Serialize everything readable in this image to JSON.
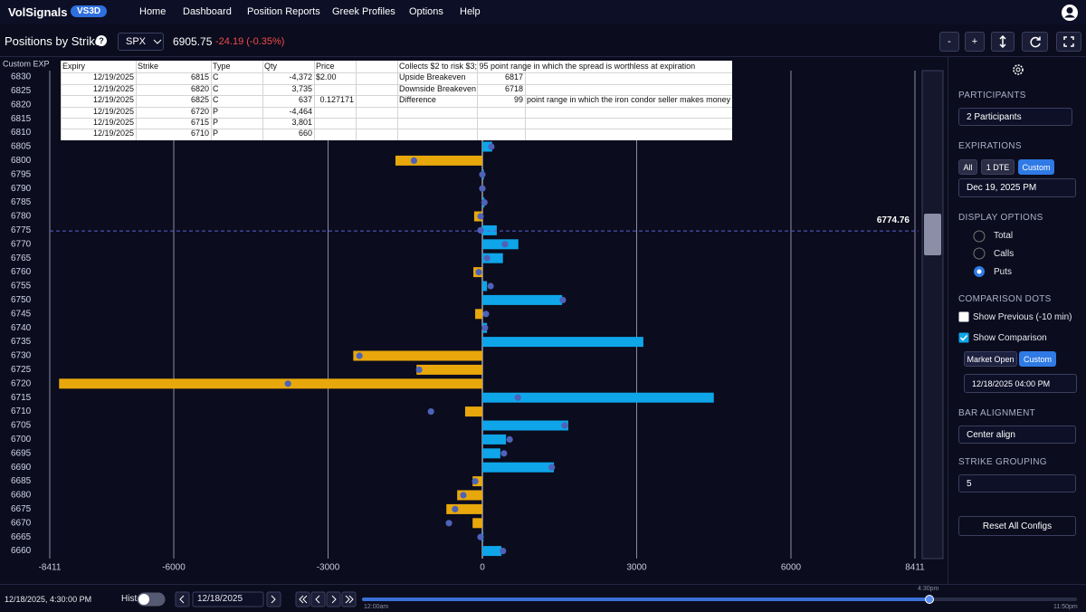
{
  "nav": {
    "brand": "VolSignals",
    "badge": "VS3D",
    "items": [
      "Home",
      "Dashboard",
      "Position Reports",
      "Greek Profiles",
      "Options",
      "Help"
    ]
  },
  "toolbar": {
    "title": "Positions by Strike",
    "help": "?",
    "symbol": "SPX",
    "price": "6905.75",
    "change": "-24.19 (-0.35%)",
    "buttons": [
      "-",
      "+"
    ]
  },
  "chart_data": {
    "type": "bar",
    "orientation": "horizontal",
    "y_label": "Custom EXP",
    "categories": [
      6830,
      6825,
      6820,
      6815,
      6810,
      6805,
      6800,
      6795,
      6790,
      6785,
      6780,
      6775,
      6770,
      6765,
      6760,
      6755,
      6750,
      6745,
      6740,
      6735,
      6730,
      6725,
      6720,
      6715,
      6710,
      6705,
      6700,
      6695,
      6690,
      6685,
      6680,
      6675,
      6670,
      6665,
      6660
    ],
    "values": [
      null,
      null,
      null,
      null,
      null,
      190,
      -1690,
      30,
      0,
      40,
      -160,
      280,
      700,
      400,
      -175,
      90,
      1550,
      -140,
      90,
      3130,
      -2510,
      -1280,
      -8230,
      4500,
      -335,
      1670,
      460,
      350,
      1390,
      -190,
      -490,
      -700,
      -190,
      20,
      370
    ],
    "comparison": [
      null,
      null,
      null,
      null,
      null,
      175,
      -1330,
      0,
      0,
      40,
      -35,
      -35,
      440,
      90,
      -70,
      160,
      1565,
      70,
      50,
      null,
      -2390,
      -1230,
      -3780,
      690,
      -1000,
      1600,
      530,
      420,
      1350,
      -140,
      -370,
      -530,
      -650,
      -35,
      400
    ],
    "xlim": [
      -8411,
      8411
    ],
    "xticks": [
      -8411,
      -6000,
      -3000,
      0,
      3000,
      6000,
      8411
    ],
    "grid": true,
    "current_price": 6774.76,
    "positive_color": "#0ea5e9",
    "negative_color": "#e8a80c",
    "dot_color": "#4d62b8"
  },
  "spreadsheet": {
    "header": [
      "Expiry",
      "Strike",
      "Type",
      "Qty",
      "Price"
    ],
    "rows": [
      [
        "12/19/2025",
        "6815",
        "C",
        "-4,372",
        "$2.00"
      ],
      [
        "12/19/2025",
        "6820",
        "C",
        "3,735"
      ],
      [
        "12/19/2025",
        "6825",
        "C",
        "637",
        "0.127171"
      ],
      [
        "12/19/2025",
        "6720",
        "P",
        "-4,464"
      ],
      [
        "12/19/2025",
        "6715",
        "P",
        "3,801"
      ],
      [
        "12/19/2025",
        "6710",
        "P",
        "660"
      ]
    ],
    "notes": [
      [
        "Collects $2 to risk $3; 95 point range in which the spread is worthless at expiration"
      ],
      [
        "Upside Breakeven",
        "6817"
      ],
      [
        "Downside Breakeven",
        "6718"
      ],
      [
        "Difference",
        "99",
        "point range in which the iron condor seller makes money"
      ]
    ]
  },
  "sidebar": {
    "participants_label": "PARTICIPANTS",
    "participants": "2 Participants",
    "expirations_label": "EXPIRATIONS",
    "expiration_buttons": [
      "All",
      "1 DTE",
      "Custom"
    ],
    "expiration": "Dec 19, 2025 PM",
    "display_label": "DISPLAY OPTIONS",
    "display_options": [
      "Total",
      "Calls",
      "Puts"
    ],
    "dots_label": "COMPARISON DOTS",
    "show_previous": "Show Previous (-10 min)",
    "show_comparison": "Show Comparison",
    "comparison_buttons": [
      "Market Open",
      "Custom"
    ],
    "comparison_time": "12/18/2025 04:00 PM",
    "alignment_label": "BAR ALIGNMENT",
    "alignment": "Center align",
    "grouping_label": "STRIKE GROUPING",
    "grouping": "5",
    "reset": "Reset All Configs"
  },
  "footer": {
    "timestamp": "12/18/2025, 4:30:00 PM",
    "historical": "Historical",
    "date": "12/18/2025",
    "slider_start": "12:00am",
    "slider_current": "4:30pm",
    "slider_end": "11:50pm"
  }
}
